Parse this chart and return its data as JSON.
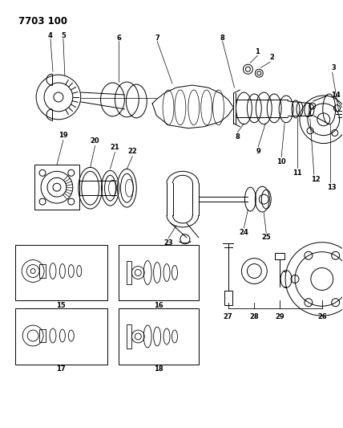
{
  "title": "7703 100",
  "bg_color": "#ffffff",
  "line_color": "#000000",
  "fig_width": 4.28,
  "fig_height": 5.33,
  "dpi": 100
}
